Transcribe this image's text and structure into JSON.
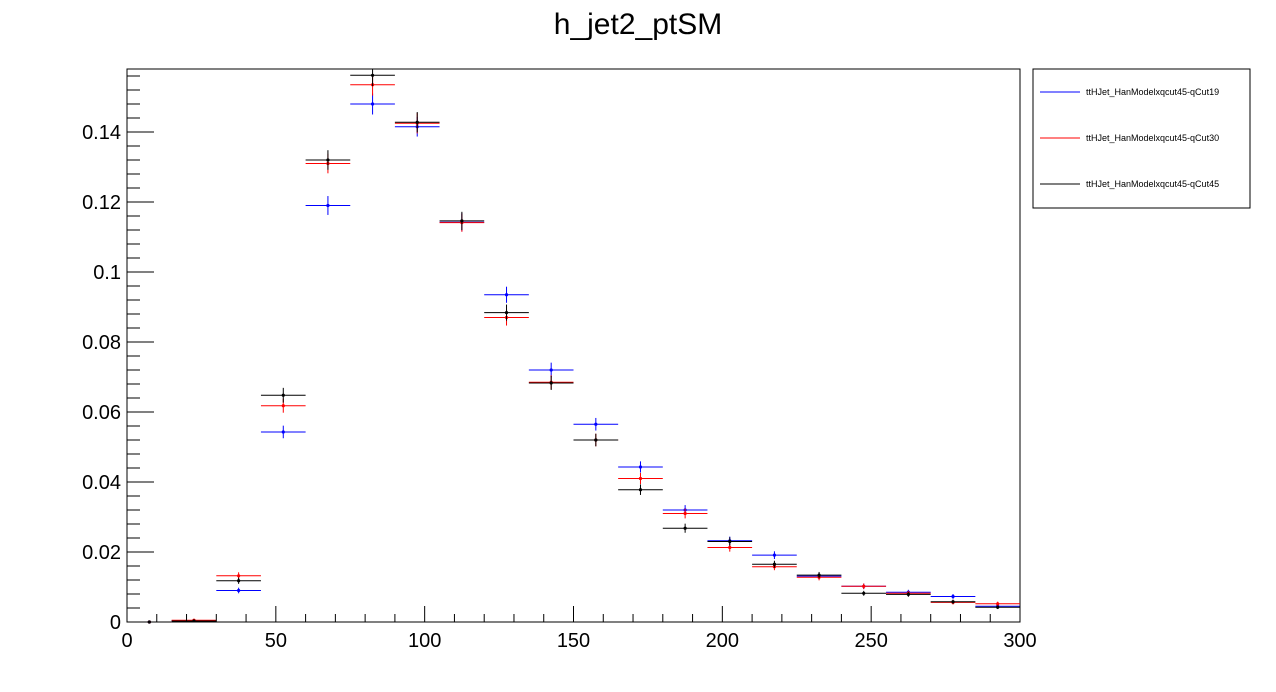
{
  "chart_data": {
    "type": "scatter",
    "title": "h_jet2_ptSM",
    "xlabel": "",
    "ylabel": "",
    "xlim": [
      0,
      300
    ],
    "ylim": [
      0,
      0.158
    ],
    "xticks": [
      0,
      50,
      100,
      150,
      200,
      250,
      300
    ],
    "xtick_labels": [
      "0",
      "50",
      "100",
      "150",
      "200",
      "250",
      "300"
    ],
    "yticks": [
      0,
      0.02,
      0.04,
      0.06,
      0.08,
      0.1,
      0.12,
      0.14
    ],
    "ytick_labels": [
      "0",
      "0.02",
      "0.04",
      "0.06",
      "0.08",
      "0.1",
      "0.12",
      "0.14"
    ],
    "grid": false,
    "legend_position": "top-right-outside",
    "x": [
      7.5,
      22.5,
      37.5,
      52.5,
      67.5,
      82.5,
      97.5,
      112.5,
      127.5,
      142.5,
      157.5,
      172.5,
      187.5,
      202.5,
      217.5,
      232.5,
      247.5,
      262.5,
      277.5,
      292.5
    ],
    "bin_width": 15,
    "series": [
      {
        "name": "ttHJet_HanModelxqcut45-qCut19",
        "color": "#0000ff",
        "values": [
          0.0,
          0.0004,
          0.009,
          0.0543,
          0.119,
          0.148,
          0.1415,
          0.1142,
          0.0935,
          0.072,
          0.0565,
          0.0443,
          0.032,
          0.0232,
          0.0191,
          0.0131,
          0.0102,
          0.0085,
          0.0073,
          0.0045
        ],
        "errors": [
          0.0,
          0.0002,
          0.0008,
          0.0018,
          0.0027,
          0.003,
          0.0028,
          0.0026,
          0.0023,
          0.0021,
          0.0018,
          0.0016,
          0.0014,
          0.0012,
          0.0011,
          0.0009,
          0.0008,
          0.0007,
          0.0007,
          0.0006
        ]
      },
      {
        "name": "ttHJet_HanModelxqcut45-qCut30",
        "color": "#ff0000",
        "values": [
          0.0,
          0.0005,
          0.0132,
          0.0618,
          0.131,
          0.1535,
          0.1425,
          0.1141,
          0.087,
          0.0685,
          0.052,
          0.041,
          0.031,
          0.0213,
          0.0158,
          0.0128,
          0.0102,
          0.0082,
          0.0056,
          0.0052
        ],
        "errors": [
          0.0,
          0.0002,
          0.001,
          0.002,
          0.0028,
          0.0031,
          0.0029,
          0.0026,
          0.0023,
          0.002,
          0.0018,
          0.0016,
          0.0014,
          0.0012,
          0.001,
          0.0009,
          0.0008,
          0.0007,
          0.0006,
          0.0006
        ]
      },
      {
        "name": "ttHJet_HanModelxqcut45-qCut45",
        "color": "#000000",
        "values": [
          0.0,
          0.0003,
          0.0118,
          0.0648,
          0.132,
          0.1562,
          0.1428,
          0.1146,
          0.0884,
          0.0683,
          0.052,
          0.0378,
          0.0268,
          0.023,
          0.0165,
          0.0134,
          0.0082,
          0.0079,
          0.0058,
          0.0042
        ],
        "errors": [
          0.0,
          0.0002,
          0.0009,
          0.0021,
          0.0028,
          0.0031,
          0.0029,
          0.0026,
          0.0023,
          0.002,
          0.0018,
          0.0015,
          0.0013,
          0.0012,
          0.001,
          0.0009,
          0.0007,
          0.0007,
          0.0006,
          0.0005
        ]
      }
    ]
  }
}
